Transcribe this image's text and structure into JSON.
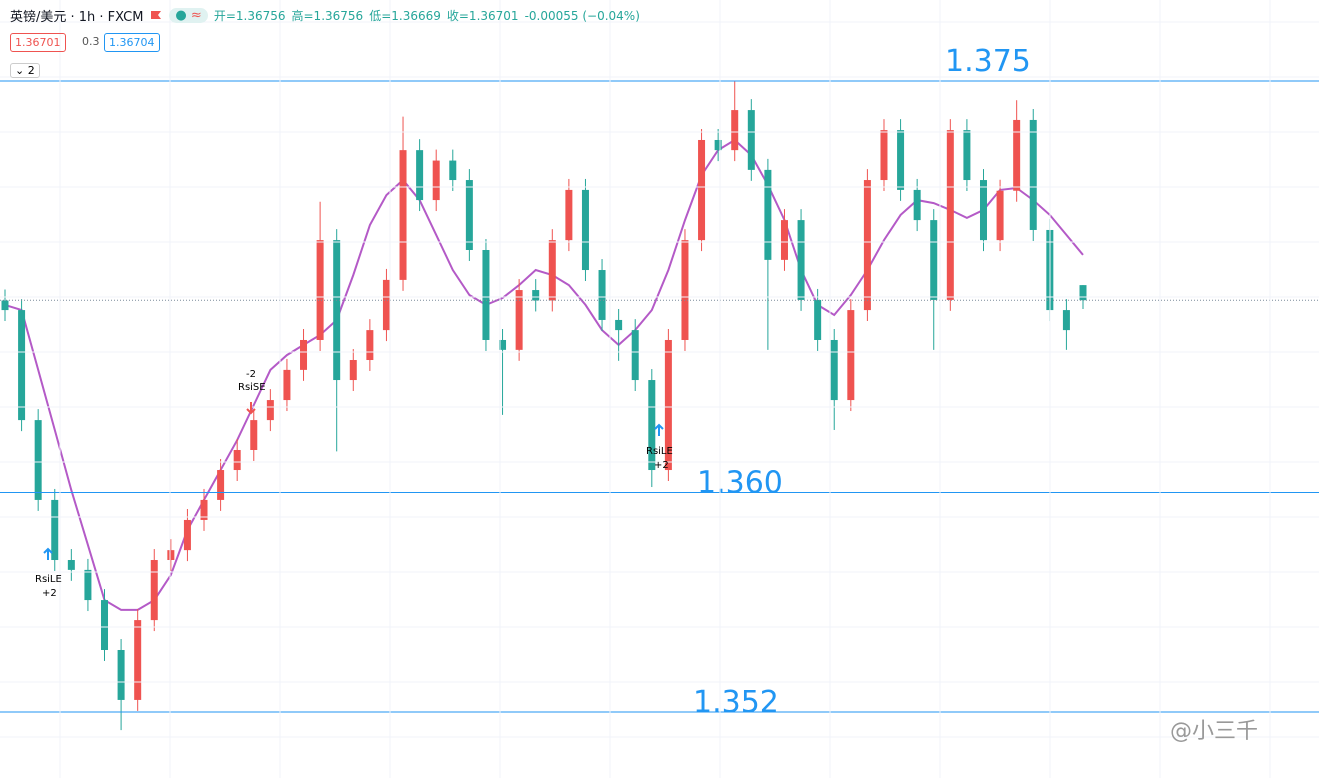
{
  "toolbar": {
    "symbol": "英镑/美元 · 1h · FXCM",
    "open": "开=1.36756",
    "high": "高=1.36756",
    "low": "低=1.36669",
    "close": "收=1.36701",
    "change": "-0.00055 (−0.04%)",
    "bid": "1.36701",
    "spread": "0.3",
    "ask": "1.36704",
    "indicators": "2"
  },
  "signals": [
    {
      "label": "RsiLE",
      "qty": "+2"
    },
    {
      "label": "RsiSE",
      "qty": "-2"
    },
    {
      "label": "RsiLE",
      "qty": "+2"
    }
  ],
  "watermark": "@小三千",
  "chart_data": {
    "type": "candlestick",
    "up_color": "#ef5350",
    "down_color": "#26a69a",
    "levels": [
      1.375,
      {
        "value": 1.36,
        "label": "1.360"
      },
      1.352
    ],
    "level_color": "#2196f3",
    "open": [
      1.367,
      1.36665,
      1.36264,
      1.35973,
      1.35754,
      1.35718,
      1.35608,
      1.35426,
      1.35244,
      1.35535,
      1.35754,
      1.3579,
      1.359,
      1.35973,
      1.36082,
      1.36155,
      1.36264,
      1.36337,
      1.36447,
      1.36556,
      1.3692,
      1.3641,
      1.36483,
      1.36592,
      1.36775,
      1.37248,
      1.37066,
      1.3721,
      1.37139,
      1.36884,
      1.36556,
      1.3652,
      1.36738,
      1.367,
      1.3692,
      1.37103,
      1.36811,
      1.36629,
      1.36592,
      1.3641,
      1.36082,
      1.36556,
      1.3692,
      1.37285,
      1.37248,
      1.37394,
      1.37176,
      1.36848,
      1.36993,
      1.36702,
      1.36556,
      1.36337,
      1.36665,
      1.37139,
      1.37321,
      1.37103,
      1.36993,
      1.36702,
      1.37321,
      1.37139,
      1.3692,
      1.371,
      1.37358,
      1.36957,
      1.36665,
      1.36756
    ],
    "high": [
      1.3674,
      1.36705,
      1.36304,
      1.36013,
      1.35794,
      1.35758,
      1.35648,
      1.35466,
      1.35575,
      1.35794,
      1.3583,
      1.3594,
      1.36013,
      1.36122,
      1.36195,
      1.36304,
      1.36377,
      1.36487,
      1.36596,
      1.3706,
      1.3696,
      1.36523,
      1.36632,
      1.36815,
      1.3737,
      1.37288,
      1.3725,
      1.3725,
      1.37179,
      1.36924,
      1.36596,
      1.36778,
      1.36778,
      1.3696,
      1.37143,
      1.37143,
      1.36851,
      1.36669,
      1.36632,
      1.3645,
      1.36596,
      1.3696,
      1.37325,
      1.37325,
      1.375,
      1.37434,
      1.37216,
      1.37033,
      1.37033,
      1.36742,
      1.36596,
      1.36705,
      1.37179,
      1.37361,
      1.37361,
      1.37143,
      1.37033,
      1.37361,
      1.37361,
      1.37179,
      1.3714,
      1.3743,
      1.37398,
      1.36997,
      1.36705,
      1.36756
    ],
    "low": [
      1.36625,
      1.36224,
      1.35933,
      1.35714,
      1.35678,
      1.35568,
      1.35386,
      1.35134,
      1.35204,
      1.35495,
      1.35714,
      1.3575,
      1.3586,
      1.35933,
      1.36042,
      1.36115,
      1.36224,
      1.36297,
      1.36407,
      1.36516,
      1.3615,
      1.3637,
      1.36443,
      1.36552,
      1.36735,
      1.37026,
      1.37026,
      1.37099,
      1.36844,
      1.36516,
      1.36283,
      1.3648,
      1.3666,
      1.3666,
      1.3688,
      1.36771,
      1.36589,
      1.3648,
      1.3637,
      1.3602,
      1.36042,
      1.36516,
      1.3688,
      1.37208,
      1.37208,
      1.37136,
      1.3652,
      1.36808,
      1.36662,
      1.36516,
      1.36228,
      1.36297,
      1.36625,
      1.37099,
      1.37063,
      1.36953,
      1.3652,
      1.36662,
      1.37099,
      1.3688,
      1.3688,
      1.3706,
      1.36917,
      1.36625,
      1.3652,
      1.36669
    ],
    "close": [
      1.36665,
      1.36264,
      1.35973,
      1.35754,
      1.35718,
      1.35608,
      1.35426,
      1.35244,
      1.35535,
      1.35754,
      1.3579,
      1.359,
      1.35973,
      1.36082,
      1.36155,
      1.36264,
      1.36337,
      1.36447,
      1.36556,
      1.3692,
      1.3641,
      1.36483,
      1.36592,
      1.36775,
      1.37248,
      1.37066,
      1.3721,
      1.37139,
      1.36884,
      1.36556,
      1.3652,
      1.36738,
      1.367,
      1.3692,
      1.37103,
      1.36811,
      1.36629,
      1.36592,
      1.3641,
      1.36082,
      1.36556,
      1.3692,
      1.37285,
      1.37248,
      1.37394,
      1.37176,
      1.36848,
      1.36993,
      1.36702,
      1.36556,
      1.36337,
      1.36665,
      1.37139,
      1.37321,
      1.37103,
      1.36993,
      1.36702,
      1.37321,
      1.37139,
      1.3692,
      1.371,
      1.37358,
      1.36957,
      1.36665,
      1.36592,
      1.36701
    ],
    "ma": {
      "color": "#b45ac7",
      "values": [
        1.36684,
        1.36665,
        1.36447,
        1.36228,
        1.36009,
        1.35809,
        1.35608,
        1.35572,
        1.35572,
        1.35608,
        1.35699,
        1.35863,
        1.35973,
        1.36082,
        1.36191,
        1.36319,
        1.36447,
        1.36501,
        1.36538,
        1.36574,
        1.36629,
        1.36793,
        1.36975,
        1.37084,
        1.37139,
        1.37066,
        1.36939,
        1.36811,
        1.3672,
        1.36684,
        1.36709,
        1.36756,
        1.36811,
        1.36793,
        1.36756,
        1.36684,
        1.36592,
        1.36538,
        1.36592,
        1.36665,
        1.36811,
        1.36993,
        1.37157,
        1.37248,
        1.37285,
        1.3723,
        1.37121,
        1.36993,
        1.36811,
        1.36684,
        1.36647,
        1.3672,
        1.36811,
        1.3692,
        1.37012,
        1.37066,
        1.37055,
        1.3703,
        1.37001,
        1.3703,
        1.37103,
        1.3711,
        1.37066,
        1.37012,
        1.36939,
        1.36866
      ]
    }
  }
}
